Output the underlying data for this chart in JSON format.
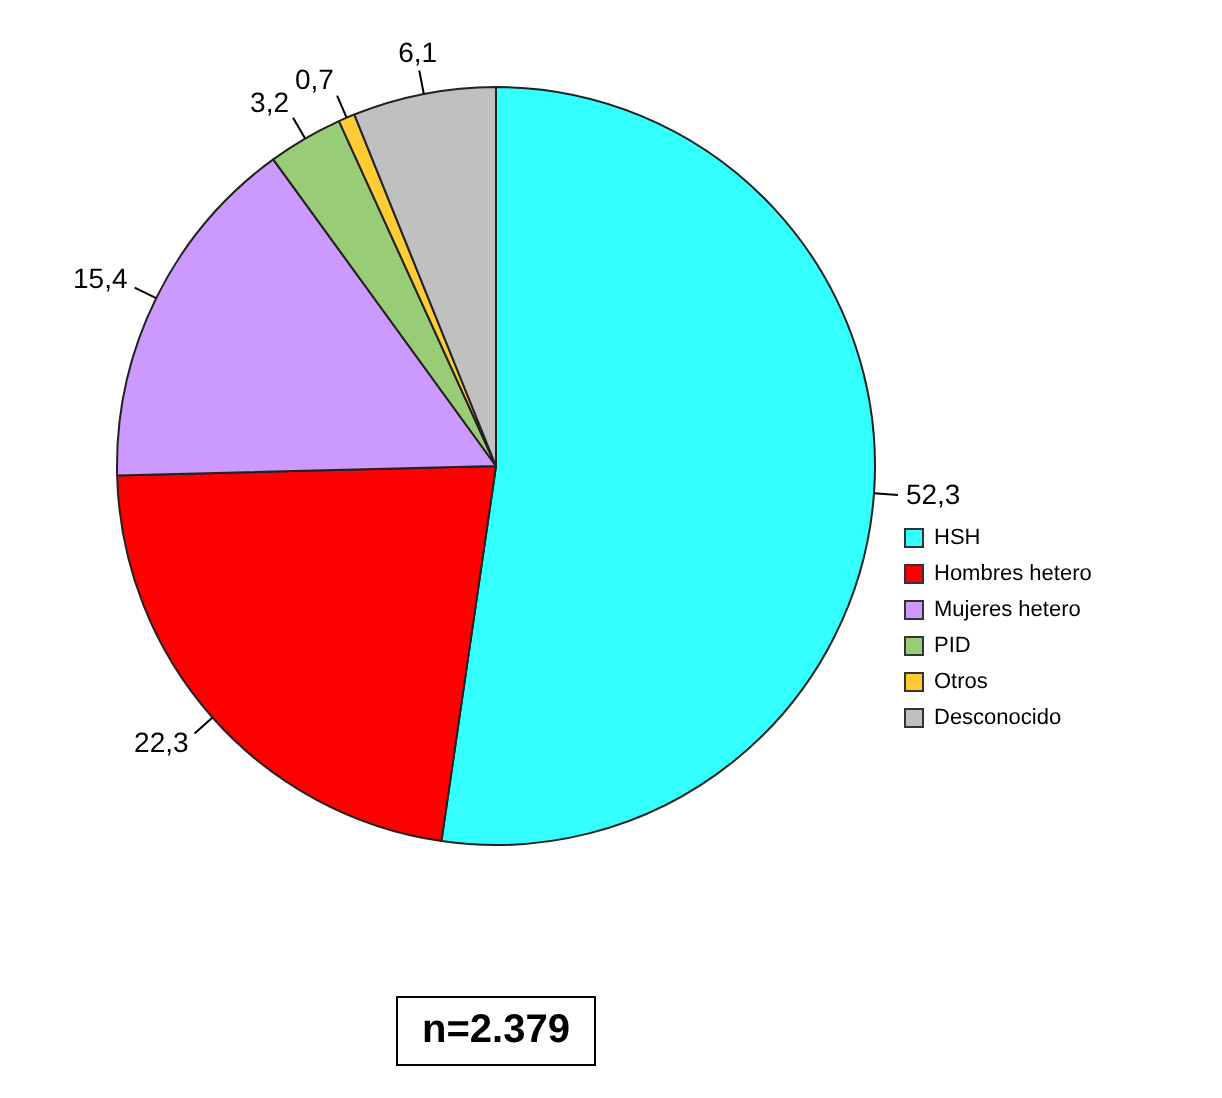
{
  "chart_data": {
    "type": "pie",
    "categories": [
      "HSH",
      "Hombres hetero",
      "Mujeres hetero",
      "PID",
      "Otros",
      "Desconocido"
    ],
    "values": [
      52.3,
      22.3,
      15.4,
      3.2,
      0.7,
      6.1
    ],
    "value_labels": [
      "52,3",
      "22,3",
      "15,4",
      "3,2",
      "0,7",
      "6,1"
    ],
    "colors": [
      "#33ffff",
      "#ff0000",
      "#cc99ff",
      "#99cc77",
      "#ffcc33",
      "#c0c0c0"
    ],
    "legend": "right",
    "annotations": [
      "n=2.379"
    ]
  }
}
